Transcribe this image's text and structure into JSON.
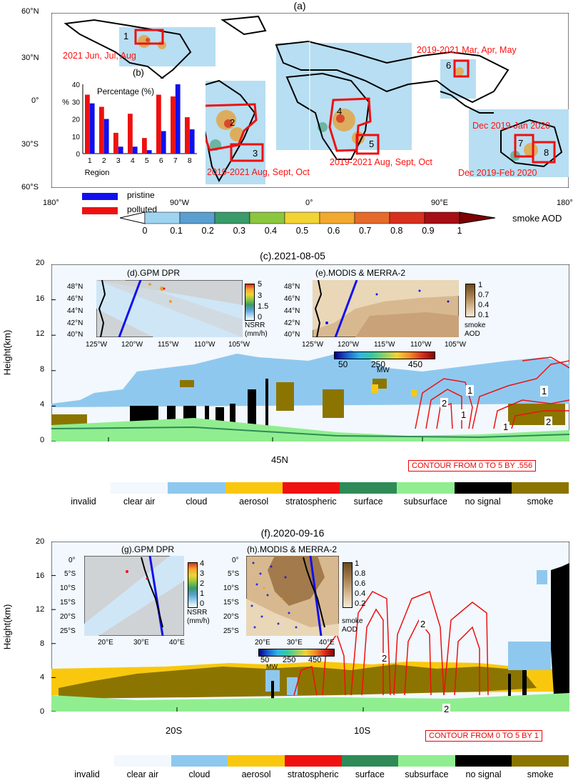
{
  "panel_a": {
    "title": "(a)",
    "lat_labels": [
      "60°N",
      "30°N",
      "0°",
      "30°S",
      "60°S"
    ],
    "lon_labels": [
      "180°",
      "90°W",
      "0°",
      "90°E",
      "180°"
    ],
    "region_notes": {
      "r1": "2021 Jun, Jul, Aug",
      "r23": "2019-2021 Aug, Sept, Oct",
      "r45": "2019-2021 Aug, Sept, Oct",
      "r6": "2019-2021 Mar, Apr, May",
      "r7": "Dec 2019-Jan 2020",
      "r8": "Dec 2019-Feb 2020"
    },
    "region_numbers": [
      "1",
      "2",
      "3",
      "4",
      "5",
      "6",
      "7",
      "8"
    ],
    "colorbar": {
      "title": "smoke AOD",
      "ticks": [
        "0",
        "0.1",
        "0.2",
        "0.3",
        "0.4",
        "0.5",
        "0.6",
        "0.7",
        "0.8",
        "0.9",
        "1"
      ],
      "colors": [
        "#ffffff",
        "#9fd4f0",
        "#5a9fd0",
        "#3a9a6a",
        "#8cc63f",
        "#f2d335",
        "#f2a92f",
        "#e56a2b",
        "#d7301f",
        "#a50f15",
        "#7f0000"
      ]
    },
    "legend": {
      "pristine": "pristine",
      "polluted": "polluted",
      "pristine_color": "#1010ee",
      "polluted_color": "#ee1010"
    }
  },
  "chart_data": [
    {
      "type": "bar",
      "title": "Percentage (%)",
      "panel_label": "(b)",
      "xlabel": "Region",
      "ylabel": "%",
      "categories": [
        "1",
        "2",
        "3",
        "4",
        "5",
        "6",
        "7",
        "8"
      ],
      "series": [
        {
          "name": "pristine",
          "color": "#1010ee",
          "values": [
            29,
            20,
            4,
            4,
            2,
            13,
            40,
            14
          ]
        },
        {
          "name": "polluted",
          "color": "#ee1010",
          "values": [
            34,
            27,
            12,
            23,
            9,
            34,
            33,
            21
          ]
        }
      ],
      "ylim": [
        0,
        40
      ],
      "yticks": [
        0,
        10,
        20,
        30,
        40
      ]
    }
  ],
  "panel_c": {
    "title": "(c).2021-08-05",
    "ylabel": "Height(km)",
    "yticks": [
      "0",
      "4",
      "8",
      "12",
      "16",
      "20"
    ],
    "xtick": "45N",
    "contour_note": "CONTOUR FROM 0 TO 5 BY .556",
    "contour_labels": [
      "1",
      "2",
      "1",
      "1",
      "1",
      "2"
    ],
    "inset_d": {
      "title": "(d).GPM DPR",
      "lat": [
        "48°N",
        "46°N",
        "44°N",
        "42°N",
        "40°N"
      ],
      "lon": [
        "125°W",
        "120°W",
        "115°W",
        "110°W",
        "105°W"
      ],
      "cbar_ticks": [
        "5",
        "3",
        "1.5",
        "0"
      ],
      "cbar_label": "NSRR",
      "cbar_unit": "(mm/h)"
    },
    "inset_e": {
      "title": "(e).MODIS & MERRA-2",
      "lat": [
        "48°N",
        "46°N",
        "44°N",
        "42°N",
        "40°N"
      ],
      "lon": [
        "125°W",
        "120°W",
        "115°W",
        "110°W",
        "105°W"
      ],
      "cbar_ticks": [
        "1",
        "0.7",
        "0.4",
        "0.1"
      ],
      "cbar_label": "smoke",
      "cbar_unit": "AOD",
      "mw_ticks": [
        "50",
        "250",
        "450"
      ],
      "mw_label": "MW"
    }
  },
  "panel_f": {
    "title": "(f).2020-09-16",
    "ylabel": "Height(km)",
    "yticks": [
      "0",
      "4",
      "8",
      "12",
      "16",
      "20"
    ],
    "xticks": [
      "20S",
      "10S"
    ],
    "contour_note": "CONTOUR FROM 0 TO 5 BY 1",
    "contour_labels": [
      "2",
      "2",
      "2"
    ],
    "inset_g": {
      "title": "(g).GPM DPR",
      "lat": [
        "0°",
        "5°S",
        "10°S",
        "15°S",
        "20°S",
        "25°S"
      ],
      "lon": [
        "20°E",
        "30°E",
        "40°E"
      ],
      "cbar_ticks": [
        "4",
        "3",
        "2",
        "1",
        "0"
      ],
      "cbar_label": "NSRR",
      "cbar_unit": "(mm/h)"
    },
    "inset_h": {
      "title": "(h).MODIS & MERRA-2",
      "lat": [
        "0°",
        "5°S",
        "10°S",
        "15°S",
        "20°S",
        "25°S"
      ],
      "lon": [
        "20°E",
        "30°E",
        "40°E"
      ],
      "cbar_ticks": [
        "1",
        "0.8",
        "0.6",
        "0.4",
        "0.2"
      ],
      "cbar_label": "smoke",
      "cbar_unit": "AOD",
      "mw_ticks": [
        "50",
        "250",
        "450"
      ],
      "mw_label": "MW"
    }
  },
  "feature_legend": {
    "labels": [
      "invalid",
      "clear air",
      "cloud",
      "aerosol",
      "stratospheric",
      "surface",
      "subsurface",
      "no signal",
      "smoke"
    ],
    "colors": [
      "#f2f8fd",
      "#f2f8fd",
      "#8fc8ee",
      "#f9c80e",
      "#f01010",
      "#2e8b57",
      "#90ee90",
      "#000000",
      "#8b7500"
    ]
  }
}
